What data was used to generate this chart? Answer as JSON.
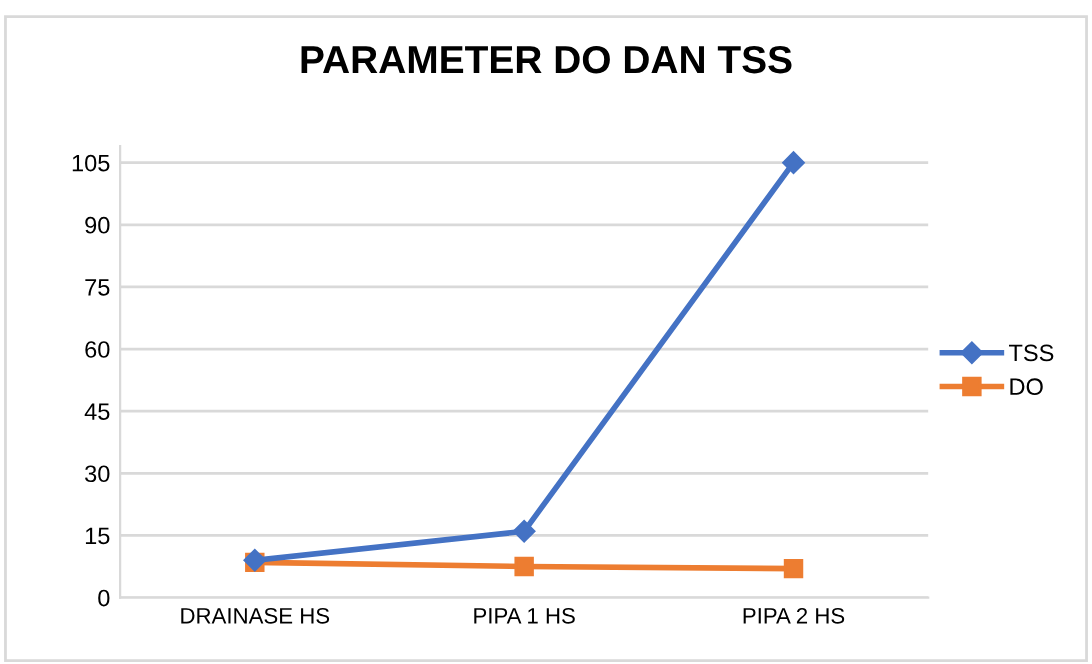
{
  "chart_data": {
    "type": "line",
    "title": "PARAMETER DO DAN TSS",
    "categories": [
      "DRAINASE HS",
      "PIPA 1 HS",
      "PIPA 2 HS"
    ],
    "series": [
      {
        "name": "TSS",
        "color": "#4472c4",
        "marker": "diamond",
        "values": [
          9,
          16,
          105
        ]
      },
      {
        "name": "DO",
        "color": "#ed7d31",
        "marker": "square",
        "values": [
          8.5,
          7.5,
          7
        ]
      }
    ],
    "ylim": [
      0,
      109
    ],
    "yticks": [
      0,
      15,
      30,
      45,
      60,
      75,
      90,
      105
    ],
    "grid": "y",
    "legend": "right",
    "line_style": "solid"
  }
}
